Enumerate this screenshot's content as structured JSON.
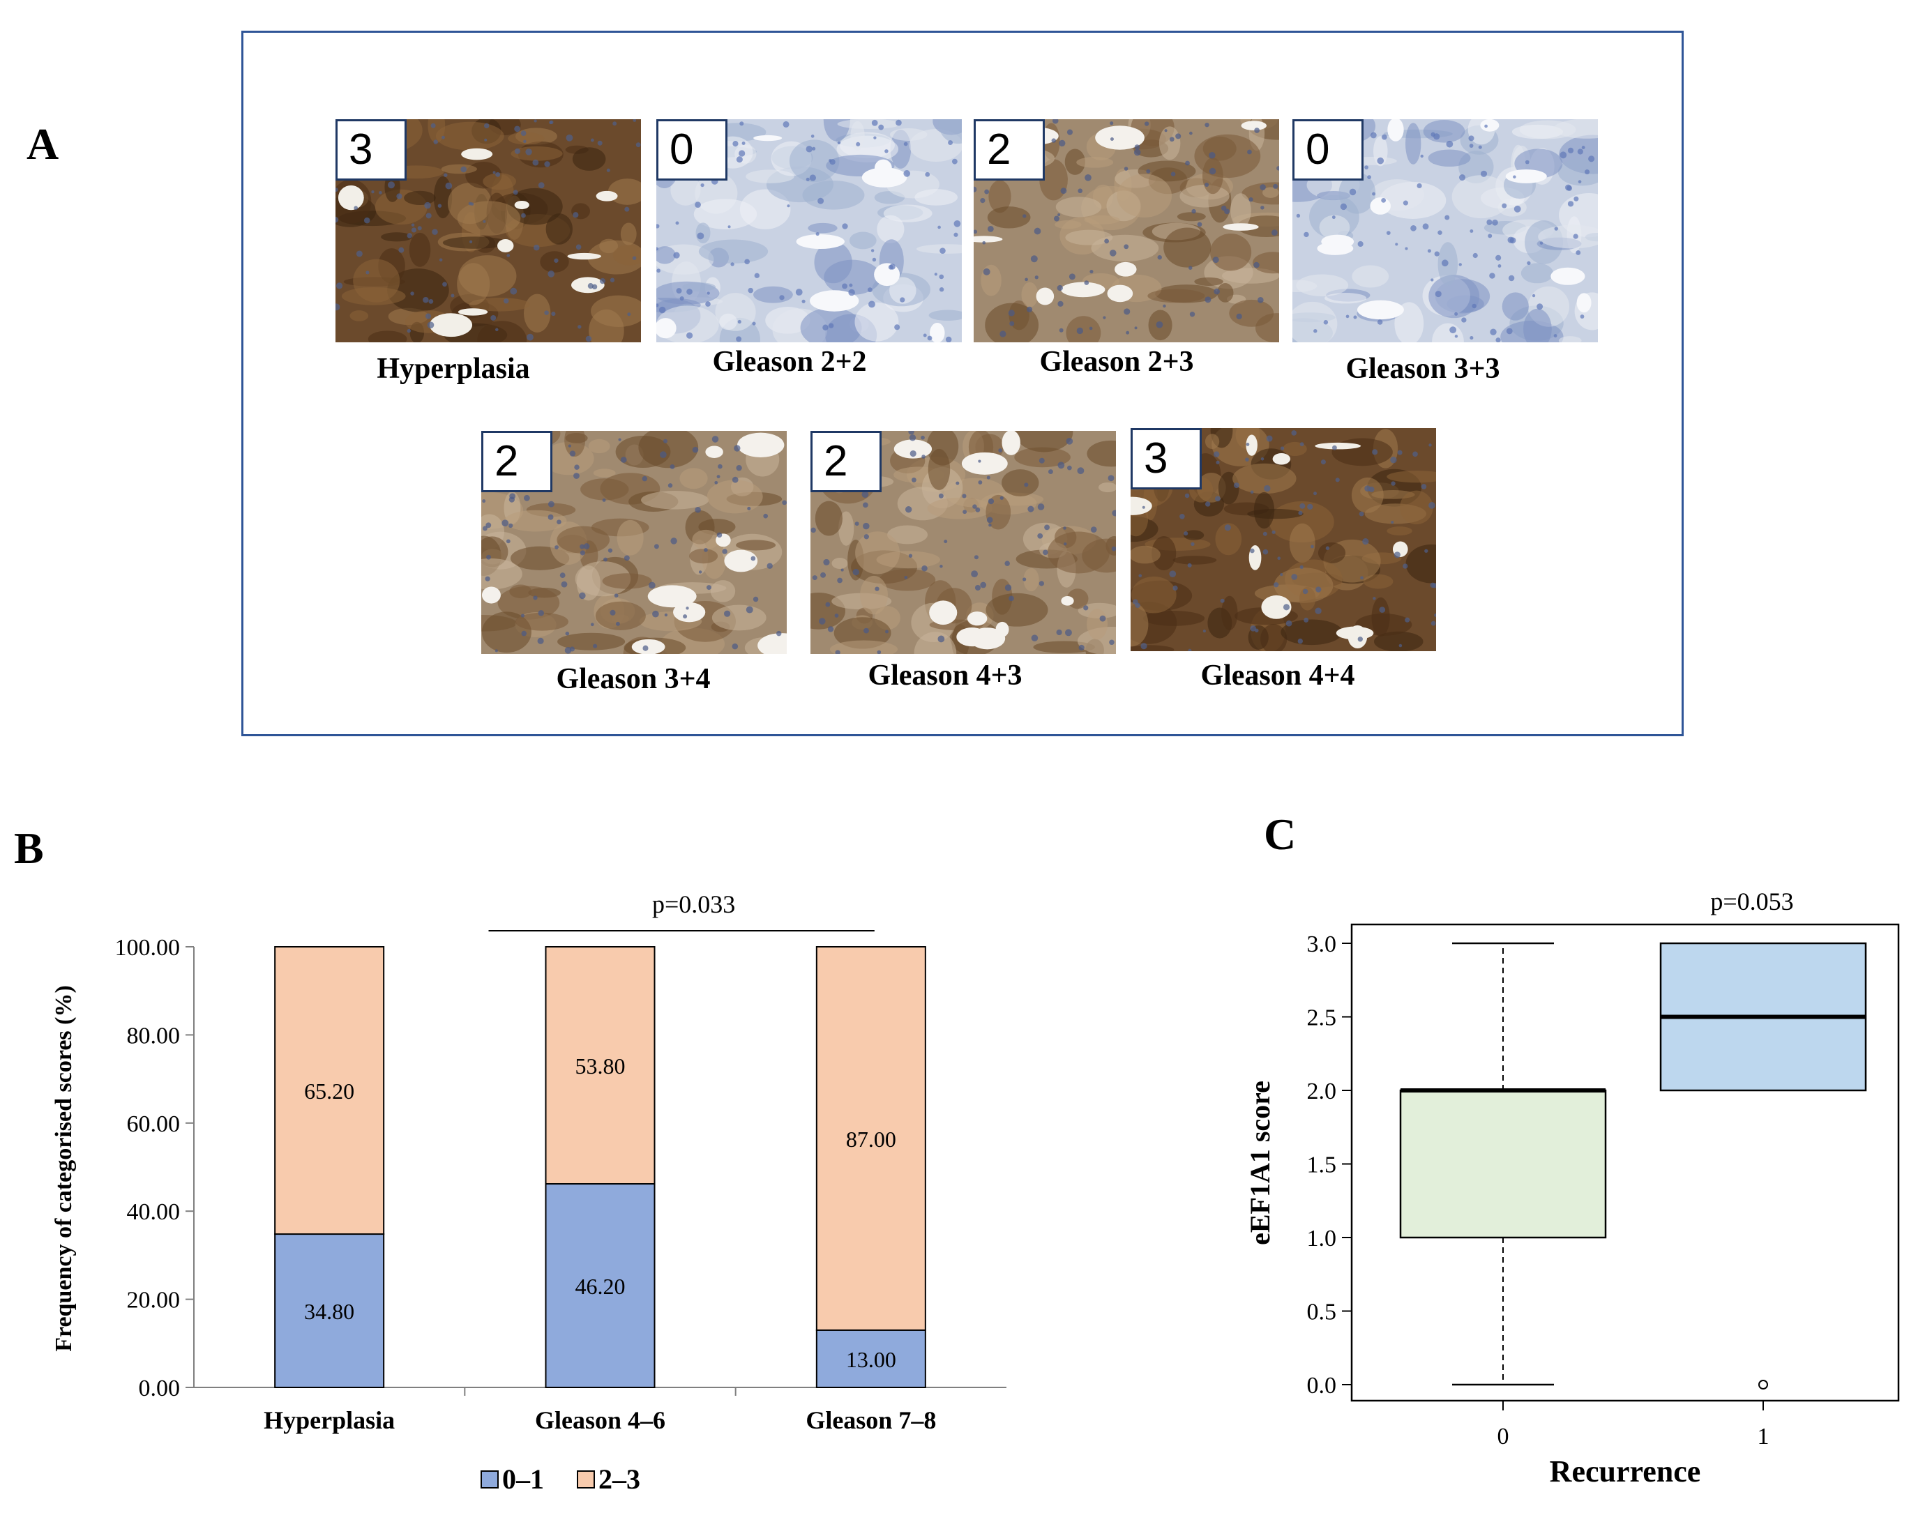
{
  "panels": {
    "a": "A",
    "b": "B",
    "c": "C"
  },
  "panel_a": {
    "frame_color": "#2f5597",
    "tiles": [
      {
        "score": "3",
        "label": "Hyperplasia",
        "stain": "strong"
      },
      {
        "score": "0",
        "label": "Gleason 2+2",
        "stain": "none"
      },
      {
        "score": "2",
        "label": "Gleason 2+3",
        "stain": "moderate"
      },
      {
        "score": "0",
        "label": "Gleason 3+3",
        "stain": "none"
      },
      {
        "score": "2",
        "label": "Gleason 3+4",
        "stain": "moderate"
      },
      {
        "score": "2",
        "label": "Gleason 4+3",
        "stain": "moderate"
      },
      {
        "score": "3",
        "label": "Gleason 4+4",
        "stain": "strong"
      }
    ]
  },
  "chart_data": [
    {
      "type": "bar",
      "stacked": true,
      "categories": [
        "Hyperplasia",
        "Gleason 4–6",
        "Gleason 7–8"
      ],
      "series": [
        {
          "name": "0–1",
          "values": [
            34.8,
            46.2,
            13.0
          ],
          "labels": [
            "34.80",
            "46.20",
            "13.00"
          ],
          "color": "#8faadc"
        },
        {
          "name": "2–3",
          "values": [
            65.2,
            53.8,
            87.0
          ],
          "labels": [
            "65.20",
            "53.80",
            "87.00"
          ],
          "color": "#f8cbad"
        }
      ],
      "ylabel": "Frequency of categorised scores (%)",
      "xlabel": "",
      "ylim": [
        0,
        100
      ],
      "yticks": [
        "0.00",
        "20.00",
        "40.00",
        "60.00",
        "80.00",
        "100.00"
      ],
      "annotation": "p=0.033",
      "legend_position": "bottom",
      "grid": false
    },
    {
      "type": "box",
      "categories": [
        "0",
        "1"
      ],
      "boxes": [
        {
          "whisker_low": 0.0,
          "q1": 1.0,
          "median": 2.0,
          "q3": 2.0,
          "whisker_high": 3.0,
          "outliers": [],
          "color": "#e2efda"
        },
        {
          "whisker_low": 2.0,
          "q1": 2.0,
          "median": 2.5,
          "q3": 3.0,
          "whisker_high": 3.0,
          "outliers": [
            0.0
          ],
          "color": "#bdd7ee"
        }
      ],
      "xlabel": "Recurrence",
      "ylabel": "eEF1A1 score",
      "ylim": [
        0,
        3
      ],
      "yticks": [
        "0.0",
        "0.5",
        "1.0",
        "1.5",
        "2.0",
        "2.5",
        "3.0"
      ],
      "annotation": "p=0.053",
      "grid": false
    }
  ]
}
